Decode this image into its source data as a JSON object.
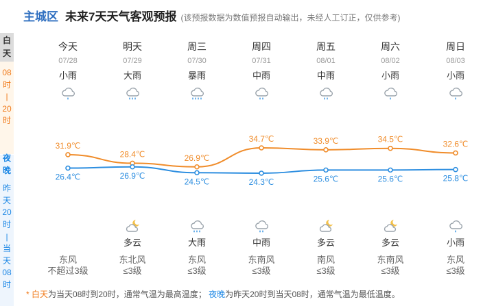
{
  "header": {
    "district": "主城区",
    "title": "未来7天天气客观预报",
    "note": "(该预报数据为数值预报自动输出，未经人工订正，仅供参考)"
  },
  "side": {
    "day": {
      "label_1": "白",
      "label_2": "天",
      "l3": "08",
      "l4": "时",
      "l5": "|",
      "l6": "20",
      "l7": "时"
    },
    "night": {
      "label_1": "夜",
      "label_2": "晚",
      "l3": "昨",
      "l4": "天",
      "l5": "20",
      "l6": "时",
      "l7": "|",
      "l8": "当",
      "l9": "天",
      "l10": "08",
      "l11": "时"
    }
  },
  "days": [
    {
      "name": "今天",
      "date": "07/28",
      "day_weather": "小雨",
      "day_icon": "light-rain-icon",
      "high": "31.9℃",
      "low": "26.4℃",
      "night_weather": "",
      "night_icon": "",
      "wind_dir": "东风",
      "wind_level": "不超过3级"
    },
    {
      "name": "明天",
      "date": "07/29",
      "day_weather": "大雨",
      "day_icon": "heavy-rain-icon",
      "high": "28.4℃",
      "low": "26.9℃",
      "night_weather": "多云",
      "night_icon": "partly-cloudy-night-icon",
      "wind_dir": "东北风",
      "wind_level": "≤3级"
    },
    {
      "name": "周三",
      "date": "07/30",
      "day_weather": "暴雨",
      "day_icon": "rainstorm-icon",
      "high": "26.9℃",
      "low": "24.5℃",
      "night_weather": "大雨",
      "night_icon": "heavy-rain-icon",
      "wind_dir": "东风",
      "wind_level": "≤3级"
    },
    {
      "name": "周四",
      "date": "07/31",
      "day_weather": "中雨",
      "day_icon": "moderate-rain-icon",
      "high": "34.7℃",
      "low": "24.3℃",
      "night_weather": "中雨",
      "night_icon": "moderate-rain-icon",
      "wind_dir": "东南风",
      "wind_level": "≤3级"
    },
    {
      "name": "周五",
      "date": "08/01",
      "day_weather": "中雨",
      "day_icon": "moderate-rain-icon",
      "high": "33.9℃",
      "low": "25.6℃",
      "night_weather": "多云",
      "night_icon": "partly-cloudy-night-icon",
      "wind_dir": "南风",
      "wind_level": "≤3级"
    },
    {
      "name": "周六",
      "date": "08/02",
      "day_weather": "小雨",
      "day_icon": "light-rain-icon",
      "high": "34.5℃",
      "low": "25.6℃",
      "night_weather": "多云",
      "night_icon": "partly-cloudy-night-icon",
      "wind_dir": "东南风",
      "wind_level": "≤3级"
    },
    {
      "name": "周日",
      "date": "08/03",
      "day_weather": "小雨",
      "day_icon": "light-rain-icon",
      "high": "32.6℃",
      "low": "25.8℃",
      "night_weather": "小雨",
      "night_icon": "light-rain-icon",
      "wind_dir": "东风",
      "wind_level": "≤3级"
    }
  ],
  "chart_data": {
    "type": "line",
    "categories": [
      "07/28",
      "07/29",
      "07/30",
      "07/31",
      "08/01",
      "08/02",
      "08/03"
    ],
    "series": [
      {
        "values": [
          31.9,
          28.4,
          26.9,
          34.7,
          33.9,
          34.5,
          32.6
        ],
        "color": "#f08c2a"
      },
      {
        "values": [
          26.4,
          26.9,
          24.5,
          24.3,
          25.6,
          25.6,
          25.8
        ],
        "color": "#2d8ee0"
      }
    ]
  },
  "footer": {
    "star": "* ",
    "day_term": "白天",
    "day_desc": "为当天08时到20时，通常气温为最高温度；",
    "night_term": "夜晚",
    "night_desc": "为昨天20时到当天08时，通常气温为最低温度。"
  },
  "colors": {
    "day": "#f07a1a",
    "night": "#1e88e5",
    "accent": "#2f6fc0"
  }
}
